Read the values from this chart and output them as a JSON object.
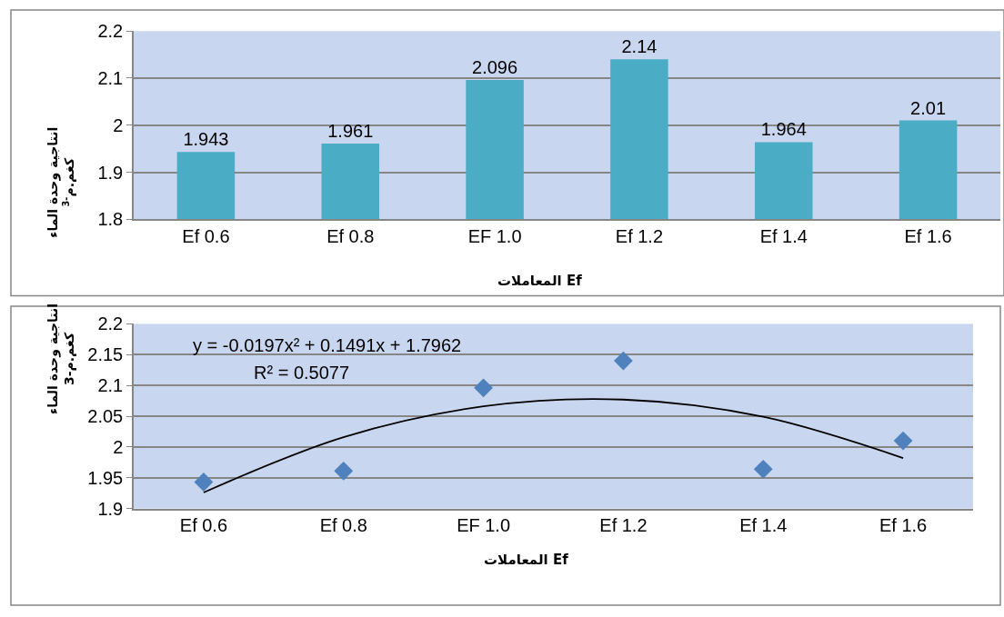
{
  "chart_data": [
    {
      "type": "bar",
      "xlabel": "المعاملات Ef",
      "ylabel": "انتاجية وحدة الماء كغم.م$^{-3}$",
      "categories": [
        "Ef 0.6",
        "Ef 0.8",
        "EF 1.0",
        "Ef 1.2",
        "Ef 1.4",
        "Ef 1.6"
      ],
      "values": [
        1.943,
        1.961,
        2.096,
        2.14,
        1.964,
        2.01
      ],
      "color": "#4bacc6",
      "ylim": [
        1.8,
        2.2
      ],
      "yticks": [
        1.8,
        1.9,
        2,
        2.1,
        2.2
      ],
      "grid": "y",
      "data_labels": true
    },
    {
      "type": "scatter",
      "xlabel": "المعاملات Ef",
      "ylabel": "انتاجية وحدة الماء كغم.م-3",
      "categories": [
        "Ef 0.6",
        "Ef 0.8",
        "EF 1.0",
        "Ef 1.2",
        "Ef 1.4",
        "Ef 1.6"
      ],
      "series": [
        {
          "type": "scatter",
          "color": "#4f81bd",
          "marker": "diamond",
          "values": [
            1.943,
            1.961,
            2.096,
            2.14,
            1.964,
            2.01
          ]
        },
        {
          "type": "line",
          "color": "#000000",
          "marker": "none",
          "values": [
            1.926,
            2.016,
            2.066,
            2.077,
            2.049,
            1.982
          ]
        }
      ],
      "ylim": [
        1.9,
        2.2
      ],
      "yticks": [
        1.9,
        1.95,
        2,
        2.05,
        2.1,
        2.15,
        2.2
      ],
      "grid": "y",
      "annotations": [
        "y = -0.0197x² + 0.1491x + 1.7962",
        "R² = 0.5077"
      ]
    }
  ]
}
